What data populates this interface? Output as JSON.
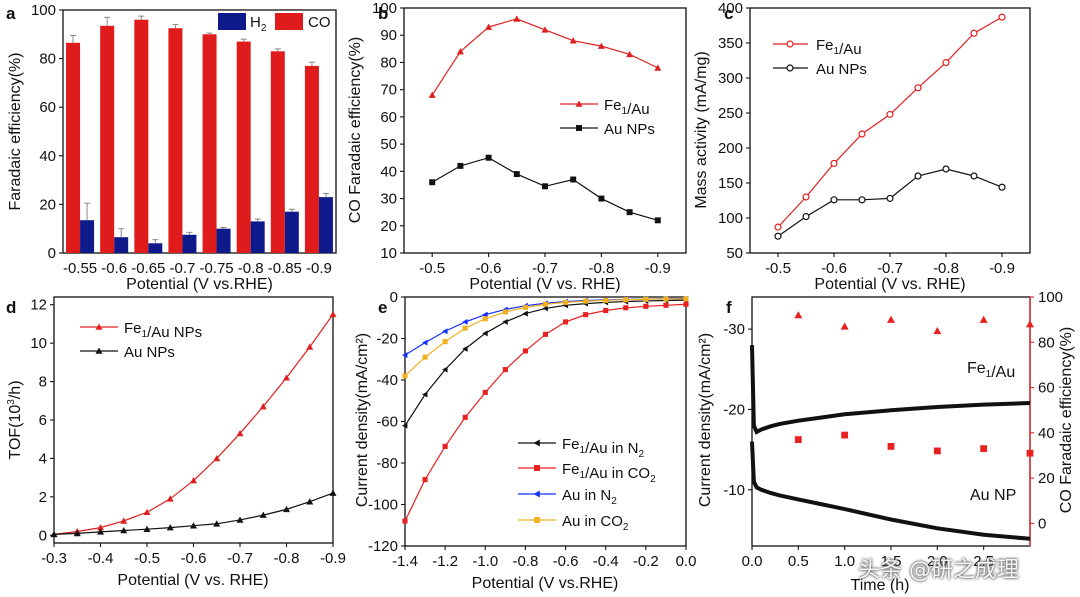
{
  "figure": {
    "watermark": "头条 @研之成理",
    "colors": {
      "red": "#e02020",
      "black": "#111111",
      "blue": "#1430ff",
      "orange": "#f0b020",
      "bar_red": "#e01b1b",
      "bar_navy": "#0f1a8a"
    }
  },
  "chart_data": [
    {
      "id": "a",
      "panel_label": "a",
      "type": "bar",
      "title": "",
      "xlabel": "Potential (V vs.RHE)",
      "ylabel": "Faradaic efficiency(%)",
      "categories": [
        "-0.55",
        "-0.6",
        "-0.65",
        "-0.7",
        "-0.75",
        "-0.8",
        "-0.85",
        "-0.9"
      ],
      "ylim": [
        0,
        100
      ],
      "yticks": [
        0,
        20,
        40,
        60,
        80,
        100
      ],
      "legend": [
        {
          "label": "H₂",
          "color": "#0f1a8a"
        },
        {
          "label": "CO",
          "color": "#e01b1b"
        }
      ],
      "series": [
        {
          "name": "CO",
          "color": "#e01b1b",
          "values": [
            86.5,
            93.5,
            96,
            92.5,
            90,
            87,
            83,
            77
          ],
          "errors": [
            3,
            3.5,
            1.5,
            1.5,
            0.5,
            1,
            1,
            1.5
          ]
        },
        {
          "name": "H₂",
          "color": "#0f1a8a",
          "values": [
            13.5,
            6.5,
            4,
            7.5,
            10,
            13,
            17,
            23
          ],
          "errors": [
            7,
            3.5,
            1.5,
            1,
            0.5,
            1,
            1,
            1.5
          ]
        }
      ]
    },
    {
      "id": "b",
      "panel_label": "b",
      "type": "line",
      "xlabel": "Potential (V vs. RHE)",
      "ylabel": "CO Faradaic efficiency(%)",
      "xlim": [
        -0.45,
        -0.95
      ],
      "ylim": [
        10,
        100
      ],
      "xticks": [
        -0.5,
        -0.6,
        -0.7,
        -0.8,
        -0.9
      ],
      "xtick_labels": [
        "-0.5",
        "-0.6",
        "-0.7",
        "-0.8",
        "-0.9"
      ],
      "yticks": [
        10,
        20,
        30,
        40,
        50,
        60,
        70,
        80,
        90,
        100
      ],
      "ytick_labels": [
        "10",
        "20",
        "30",
        "40",
        "50",
        "60",
        "70",
        "80",
        "90",
        "100"
      ],
      "legend_position": "right",
      "series": [
        {
          "name": "Fe₁/Au",
          "color": "#e02020",
          "marker": "triangle",
          "x": [
            -0.5,
            -0.55,
            -0.6,
            -0.65,
            -0.7,
            -0.75,
            -0.8,
            -0.85,
            -0.9
          ],
          "y": [
            68,
            84,
            93,
            96,
            92,
            88,
            86,
            83,
            78
          ]
        },
        {
          "name": "Au NPs",
          "color": "#111111",
          "marker": "square",
          "x": [
            -0.5,
            -0.55,
            -0.6,
            -0.65,
            -0.7,
            -0.75,
            -0.8,
            -0.85,
            -0.9
          ],
          "y": [
            36,
            42,
            45,
            39,
            34.5,
            37,
            30,
            25,
            22
          ]
        }
      ]
    },
    {
      "id": "c",
      "panel_label": "c",
      "type": "line",
      "xlabel": "Potential (V vs. RHE)",
      "ylabel": "Mass activity (mA/mg)",
      "xlim": [
        -0.45,
        -0.95
      ],
      "ylim": [
        50,
        400
      ],
      "xticks": [
        -0.5,
        -0.6,
        -0.7,
        -0.8,
        -0.9
      ],
      "xtick_labels": [
        "-0.5",
        "-0.6",
        "-0.7",
        "-0.8",
        "-0.9"
      ],
      "yticks": [
        50,
        100,
        150,
        200,
        250,
        300,
        350,
        400
      ],
      "ytick_labels": [
        "50",
        "100",
        "150",
        "200",
        "250",
        "300",
        "350",
        "400"
      ],
      "legend_position": "top-left",
      "series": [
        {
          "name": "Fe₁/Au",
          "color": "#e02020",
          "marker": "circle",
          "x": [
            -0.5,
            -0.55,
            -0.6,
            -0.65,
            -0.7,
            -0.75,
            -0.8,
            -0.85,
            -0.9
          ],
          "y": [
            87,
            130,
            178,
            220,
            248,
            286,
            322,
            364,
            387
          ]
        },
        {
          "name": "Au NPs",
          "color": "#111111",
          "marker": "circle",
          "x": [
            -0.5,
            -0.55,
            -0.6,
            -0.65,
            -0.7,
            -0.75,
            -0.8,
            -0.85,
            -0.9
          ],
          "y": [
            74,
            102,
            126,
            126,
            128,
            160,
            170,
            160,
            144
          ]
        }
      ]
    },
    {
      "id": "d",
      "panel_label": "d",
      "type": "line",
      "xlabel": "Potential (V vs. RHE)",
      "ylabel": "TOF(10³/h)",
      "xlim": [
        -0.3,
        -0.9
      ],
      "ylim": [
        -0.4,
        12.4
      ],
      "xticks": [
        -0.3,
        -0.4,
        -0.5,
        -0.6,
        -0.7,
        -0.8,
        -0.9
      ],
      "xtick_labels": [
        "-0.3",
        "-0.4",
        "-0.5",
        "-0.6",
        "-0.7",
        "-0.8",
        "-0.9"
      ],
      "yticks": [
        0,
        2,
        4,
        6,
        8,
        10,
        12
      ],
      "ytick_labels": [
        "0",
        "2",
        "4",
        "6",
        "8",
        "10",
        "12"
      ],
      "legend_position": "top-left",
      "series": [
        {
          "name": "Fe₁/Au NPs",
          "color": "#e02020",
          "marker": "triangle",
          "x": [
            -0.3,
            -0.35,
            -0.4,
            -0.45,
            -0.5,
            -0.55,
            -0.6,
            -0.65,
            -0.7,
            -0.75,
            -0.8,
            -0.85,
            -0.9
          ],
          "y": [
            0.05,
            0.2,
            0.4,
            0.75,
            1.2,
            1.9,
            2.85,
            4.0,
            5.3,
            6.7,
            8.2,
            9.8,
            11.5
          ]
        },
        {
          "name": "Au NPs",
          "color": "#111111",
          "marker": "triangle",
          "x": [
            -0.3,
            -0.35,
            -0.4,
            -0.45,
            -0.5,
            -0.55,
            -0.6,
            -0.65,
            -0.7,
            -0.75,
            -0.8,
            -0.85,
            -0.9
          ],
          "y": [
            0.05,
            0.1,
            0.18,
            0.25,
            0.32,
            0.4,
            0.5,
            0.6,
            0.8,
            1.05,
            1.35,
            1.75,
            2.2
          ]
        }
      ]
    },
    {
      "id": "e",
      "panel_label": "e",
      "type": "line",
      "xlabel": "Potential (V vs.RHE)",
      "ylabel": "Current density(mA/cm²)",
      "xlim": [
        -1.4,
        0.0
      ],
      "ylim": [
        -120,
        0
      ],
      "xticks": [
        -1.4,
        -1.2,
        -1.0,
        -0.8,
        -0.6,
        -0.4,
        -0.2,
        0.0
      ],
      "xtick_labels": [
        "-1.4",
        "-1.2",
        "-1.0",
        "-0.8",
        "-0.6",
        "-0.4",
        "-0.2",
        "0.0"
      ],
      "yticks": [
        0,
        -20,
        -40,
        -60,
        -80,
        -100,
        -120
      ],
      "ytick_labels": [
        "0",
        "-20",
        "-40",
        "-60",
        "-80",
        "-100",
        "-120"
      ],
      "legend_position": "bottom-right",
      "series": [
        {
          "name": "Fe₁/Au in N₂",
          "color": "#111111",
          "marker": "triangle-left",
          "x": [
            -1.4,
            -1.3,
            -1.2,
            -1.1,
            -1.0,
            -0.9,
            -0.8,
            -0.7,
            -0.6,
            -0.5,
            -0.4,
            -0.3,
            -0.2,
            -0.1,
            0.0
          ],
          "y": [
            -62,
            -47,
            -35,
            -25,
            -17.5,
            -12,
            -8,
            -5.5,
            -4,
            -3.2,
            -2.6,
            -2.2,
            -1.9,
            -1.7,
            -1.5
          ]
        },
        {
          "name": "Fe₁/Au in CO₂",
          "color": "#e82020",
          "marker": "square",
          "x": [
            -1.4,
            -1.3,
            -1.2,
            -1.1,
            -1.0,
            -0.9,
            -0.8,
            -0.7,
            -0.6,
            -0.5,
            -0.4,
            -0.3,
            -0.2,
            -0.1,
            0.0
          ],
          "y": [
            -108,
            -88,
            -72,
            -58,
            -46,
            -35,
            -26,
            -18,
            -12,
            -8.5,
            -6.5,
            -5.2,
            -4.5,
            -4,
            -3.5
          ]
        },
        {
          "name": "Au in N₂",
          "color": "#1430ff",
          "marker": "triangle-left",
          "x": [
            -1.4,
            -1.3,
            -1.2,
            -1.1,
            -1.0,
            -0.9,
            -0.8,
            -0.7,
            -0.6,
            -0.5,
            -0.4,
            -0.3,
            -0.2,
            -0.1,
            0.0
          ],
          "y": [
            -28,
            -22,
            -16.5,
            -12,
            -8.5,
            -6,
            -4.2,
            -3,
            -2.2,
            -1.7,
            -1.4,
            -1.2,
            -1.0,
            -0.9,
            -0.8
          ]
        },
        {
          "name": "Au in CO₂",
          "color": "#f0b020",
          "marker": "square",
          "x": [
            -1.4,
            -1.3,
            -1.2,
            -1.1,
            -1.0,
            -0.9,
            -0.8,
            -0.7,
            -0.6,
            -0.5,
            -0.4,
            -0.3,
            -0.2,
            -0.1,
            0.0
          ],
          "y": [
            -38,
            -29,
            -21.5,
            -15,
            -10.5,
            -7.2,
            -5,
            -3.5,
            -2.6,
            -2,
            -1.6,
            -1.3,
            -1.1,
            -1.0,
            -0.9
          ]
        }
      ]
    },
    {
      "id": "f",
      "panel_label": "f",
      "type": "line",
      "xlabel": "Time (h)",
      "ylabel": "Current density(mA/cm²)",
      "y2label": "CO Faradaic efficiency(%)",
      "xlim": [
        0,
        3.0
      ],
      "ylim": [
        -3,
        -34
      ],
      "y2lim": [
        -10,
        100
      ],
      "xticks": [
        0.0,
        0.5,
        1.0,
        1.5,
        2.0,
        2.5
      ],
      "xtick_labels": [
        "0.0",
        "0.5",
        "1.0",
        "1.5",
        "2.0",
        "2.5"
      ],
      "yticks": [
        -30,
        -20,
        -10
      ],
      "ytick_labels": [
        "-30",
        "-20",
        "-10"
      ],
      "y2ticks": [
        0,
        20,
        40,
        60,
        80,
        100
      ],
      "y2tick_labels": [
        "0",
        "20",
        "40",
        "60",
        "80",
        "100"
      ],
      "annotations": [
        "Fe₁/Au",
        "Au NP"
      ],
      "series": [
        {
          "name": "Fe₁/Au current",
          "color": "#111111",
          "x": [
            0.0,
            0.02,
            0.05,
            0.1,
            0.2,
            0.3,
            0.5,
            0.75,
            1.0,
            1.5,
            2.0,
            2.5,
            3.0
          ],
          "y": [
            -28,
            -18,
            -17.2,
            -17.5,
            -17.9,
            -18.2,
            -18.6,
            -19,
            -19.4,
            -19.9,
            -20.3,
            -20.6,
            -20.8
          ]
        },
        {
          "name": "Au NP current",
          "color": "#111111",
          "x": [
            0.0,
            0.02,
            0.05,
            0.1,
            0.2,
            0.3,
            0.5,
            0.75,
            1.0,
            1.5,
            2.0,
            2.5,
            3.0
          ],
          "y": [
            -16,
            -11,
            -10.3,
            -10,
            -9.6,
            -9.3,
            -8.8,
            -8.2,
            -7.6,
            -6.3,
            -5.2,
            -4.4,
            -3.9
          ]
        },
        {
          "name": "Fe₁/Au FE",
          "color": "#e82020",
          "marker": "triangle",
          "axis": "right",
          "x": [
            0.5,
            1.0,
            1.5,
            2.0,
            2.5,
            3.0
          ],
          "y": [
            92,
            87,
            90,
            85,
            90,
            88
          ]
        },
        {
          "name": "Au NP FE",
          "color": "#e82020",
          "marker": "square",
          "axis": "right",
          "x": [
            0.5,
            1.0,
            1.5,
            2.0,
            2.5,
            3.0
          ],
          "y": [
            37,
            39,
            34,
            32,
            33,
            31
          ]
        }
      ]
    }
  ]
}
